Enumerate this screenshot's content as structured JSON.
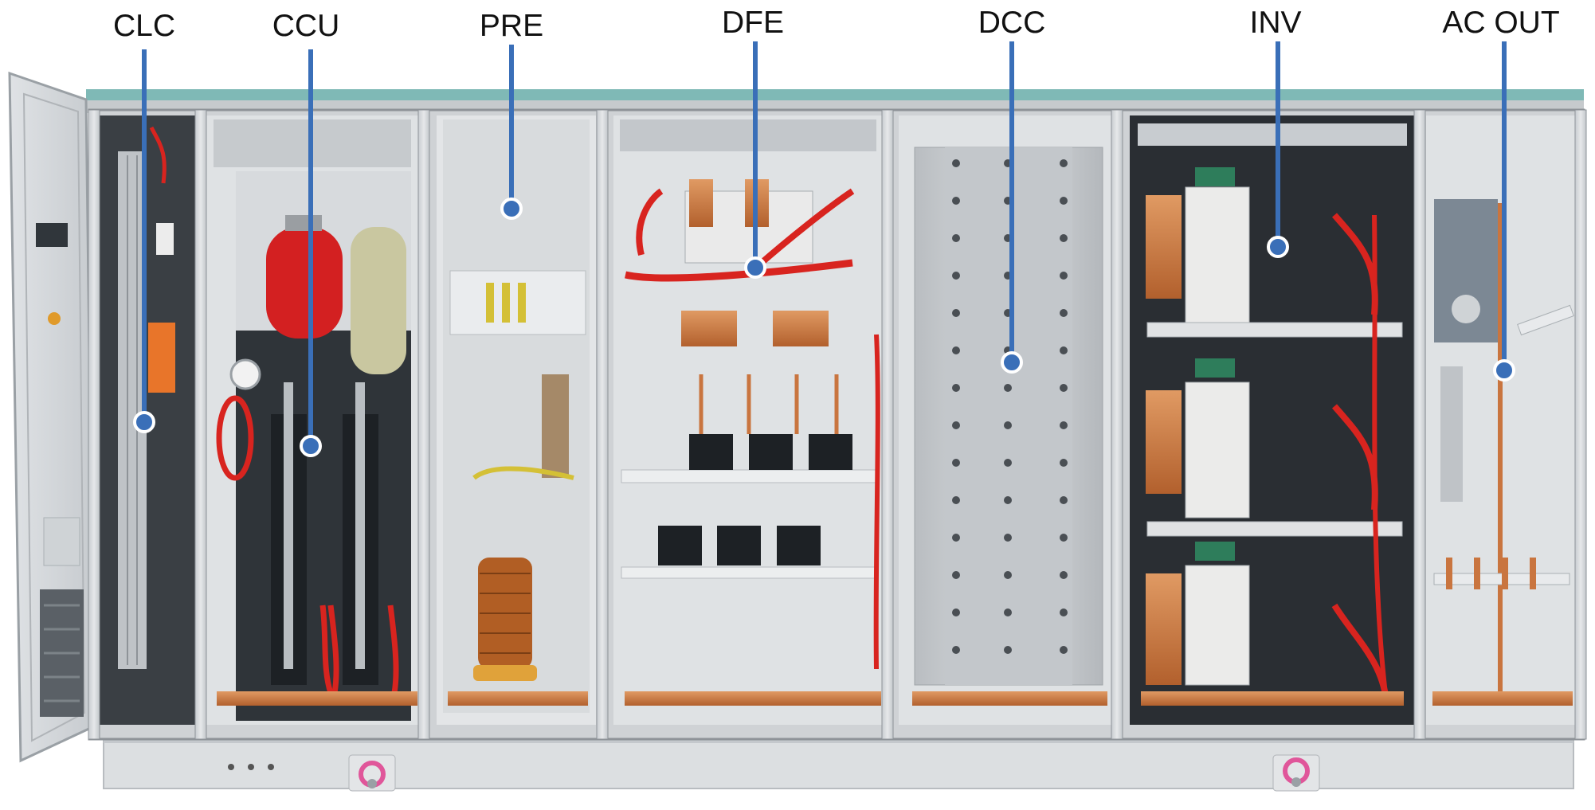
{
  "labels": {
    "clc": "CLC",
    "ccu": "CCU",
    "pre": "PRE",
    "dfe": "DFE",
    "dcc": "DCC",
    "inv": "INV",
    "ac_out": "AC OUT"
  },
  "colors": {
    "callout": "#3a6fb8",
    "frame": "#c9cdd1",
    "panel": "#d9dcde",
    "background": "#ffffff",
    "copper": "#c9753f",
    "cable_red": "#d8241f",
    "extinguisher": "#d32021",
    "handle": "#e0569a"
  }
}
